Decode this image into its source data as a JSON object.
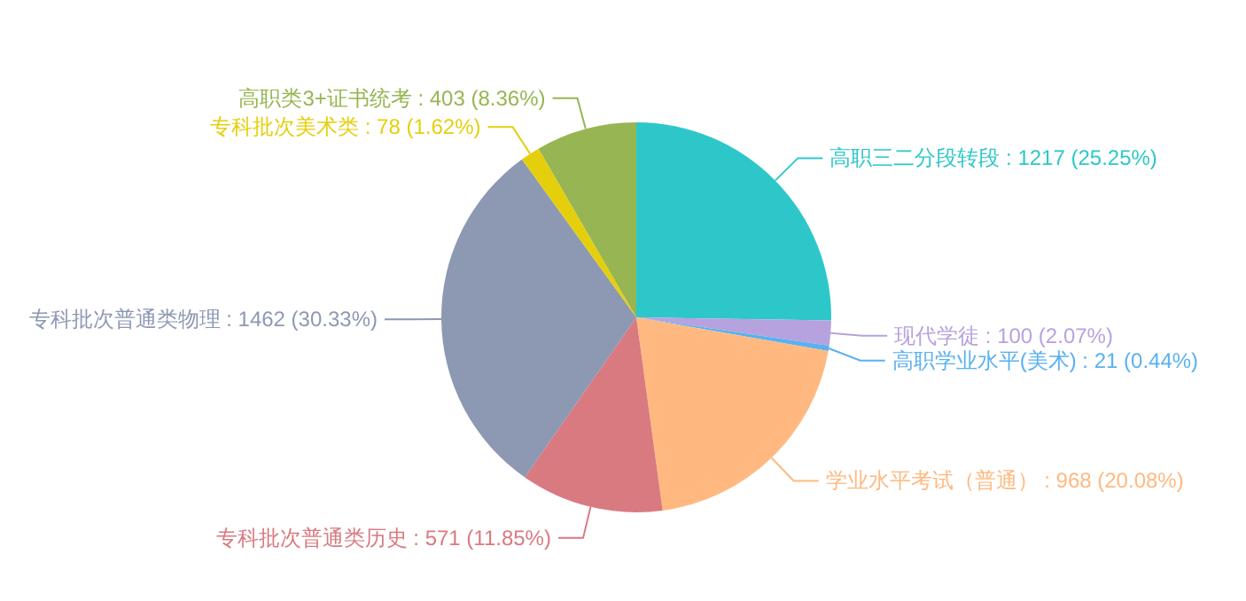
{
  "chart_data": {
    "type": "pie",
    "categories": [
      "高职三二分段转段",
      "现代学徒",
      "高职学业水平(美术)",
      "学业水平考试（普通）",
      "专科批次普通类历史",
      "专科批次普通类物理",
      "专科批次美术类",
      "高职类3+证书统考"
    ],
    "values": [
      1217,
      100,
      21,
      968,
      571,
      1462,
      78,
      403
    ],
    "value_labels": [
      "1217 (25.25%)",
      "100 (2.07%)",
      "21 (0.44%)",
      "968 (20.08%)",
      "571 (11.85%)",
      "1462 (30.33%)",
      "78 (1.62%)",
      "403 (8.36%)"
    ],
    "colors": [
      "#2ec7c9",
      "#b6a2de",
      "#5ab1ef",
      "#ffb980",
      "#d87a80",
      "#8d98b3",
      "#e5cf0d",
      "#97b552"
    ]
  }
}
